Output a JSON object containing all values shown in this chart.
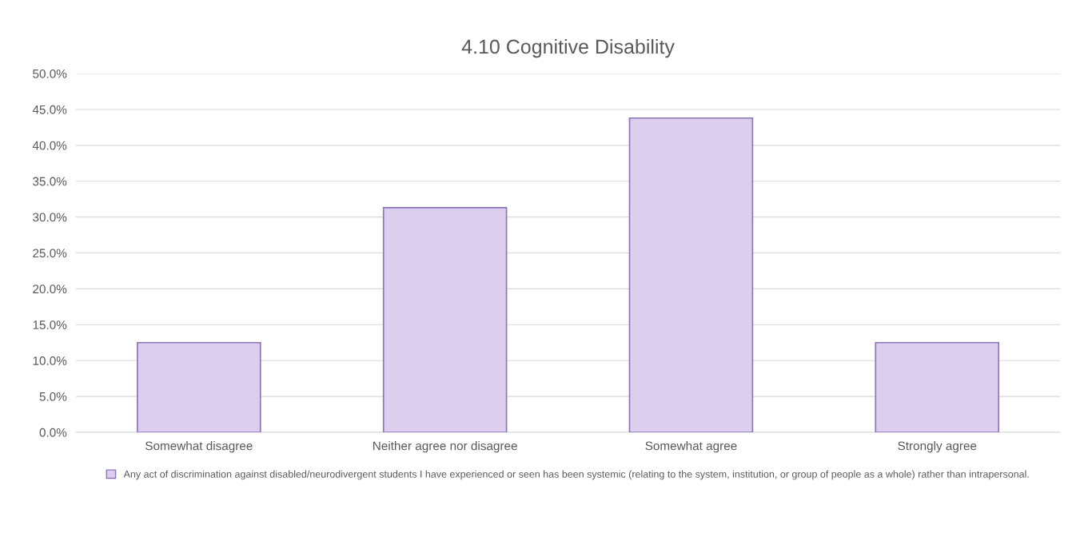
{
  "chart_data": {
    "type": "bar",
    "title": "4.10 Cognitive Disability",
    "categories": [
      "Somewhat disagree",
      "Neither agree nor disagree",
      "Somewhat agree",
      "Strongly agree"
    ],
    "series": [
      {
        "name": "Any act of discrimination against disabled/neurodivergent students I have experienced or seen has been systemic (relating to the system, institution, or group of people as a whole) rather than intrapersonal.",
        "color": "#dccfee",
        "values": [
          12.5,
          31.3,
          43.8,
          12.5
        ]
      }
    ],
    "ylim": [
      0,
      50
    ],
    "yticks": [
      {
        "value": 0,
        "label": "0.0%"
      },
      {
        "value": 5,
        "label": "5.0%"
      },
      {
        "value": 10,
        "label": "10.0%"
      },
      {
        "value": 15,
        "label": "15.0%"
      },
      {
        "value": 20,
        "label": "20.0%"
      },
      {
        "value": 25,
        "label": "25.0%"
      },
      {
        "value": 30,
        "label": "30.0%"
      },
      {
        "value": 35,
        "label": "35.0%"
      },
      {
        "value": 40,
        "label": "40.0%"
      },
      {
        "value": 45,
        "label": "45.0%"
      },
      {
        "value": 50,
        "label": "50.0%"
      }
    ],
    "grid": "y",
    "legend": "bottom"
  }
}
